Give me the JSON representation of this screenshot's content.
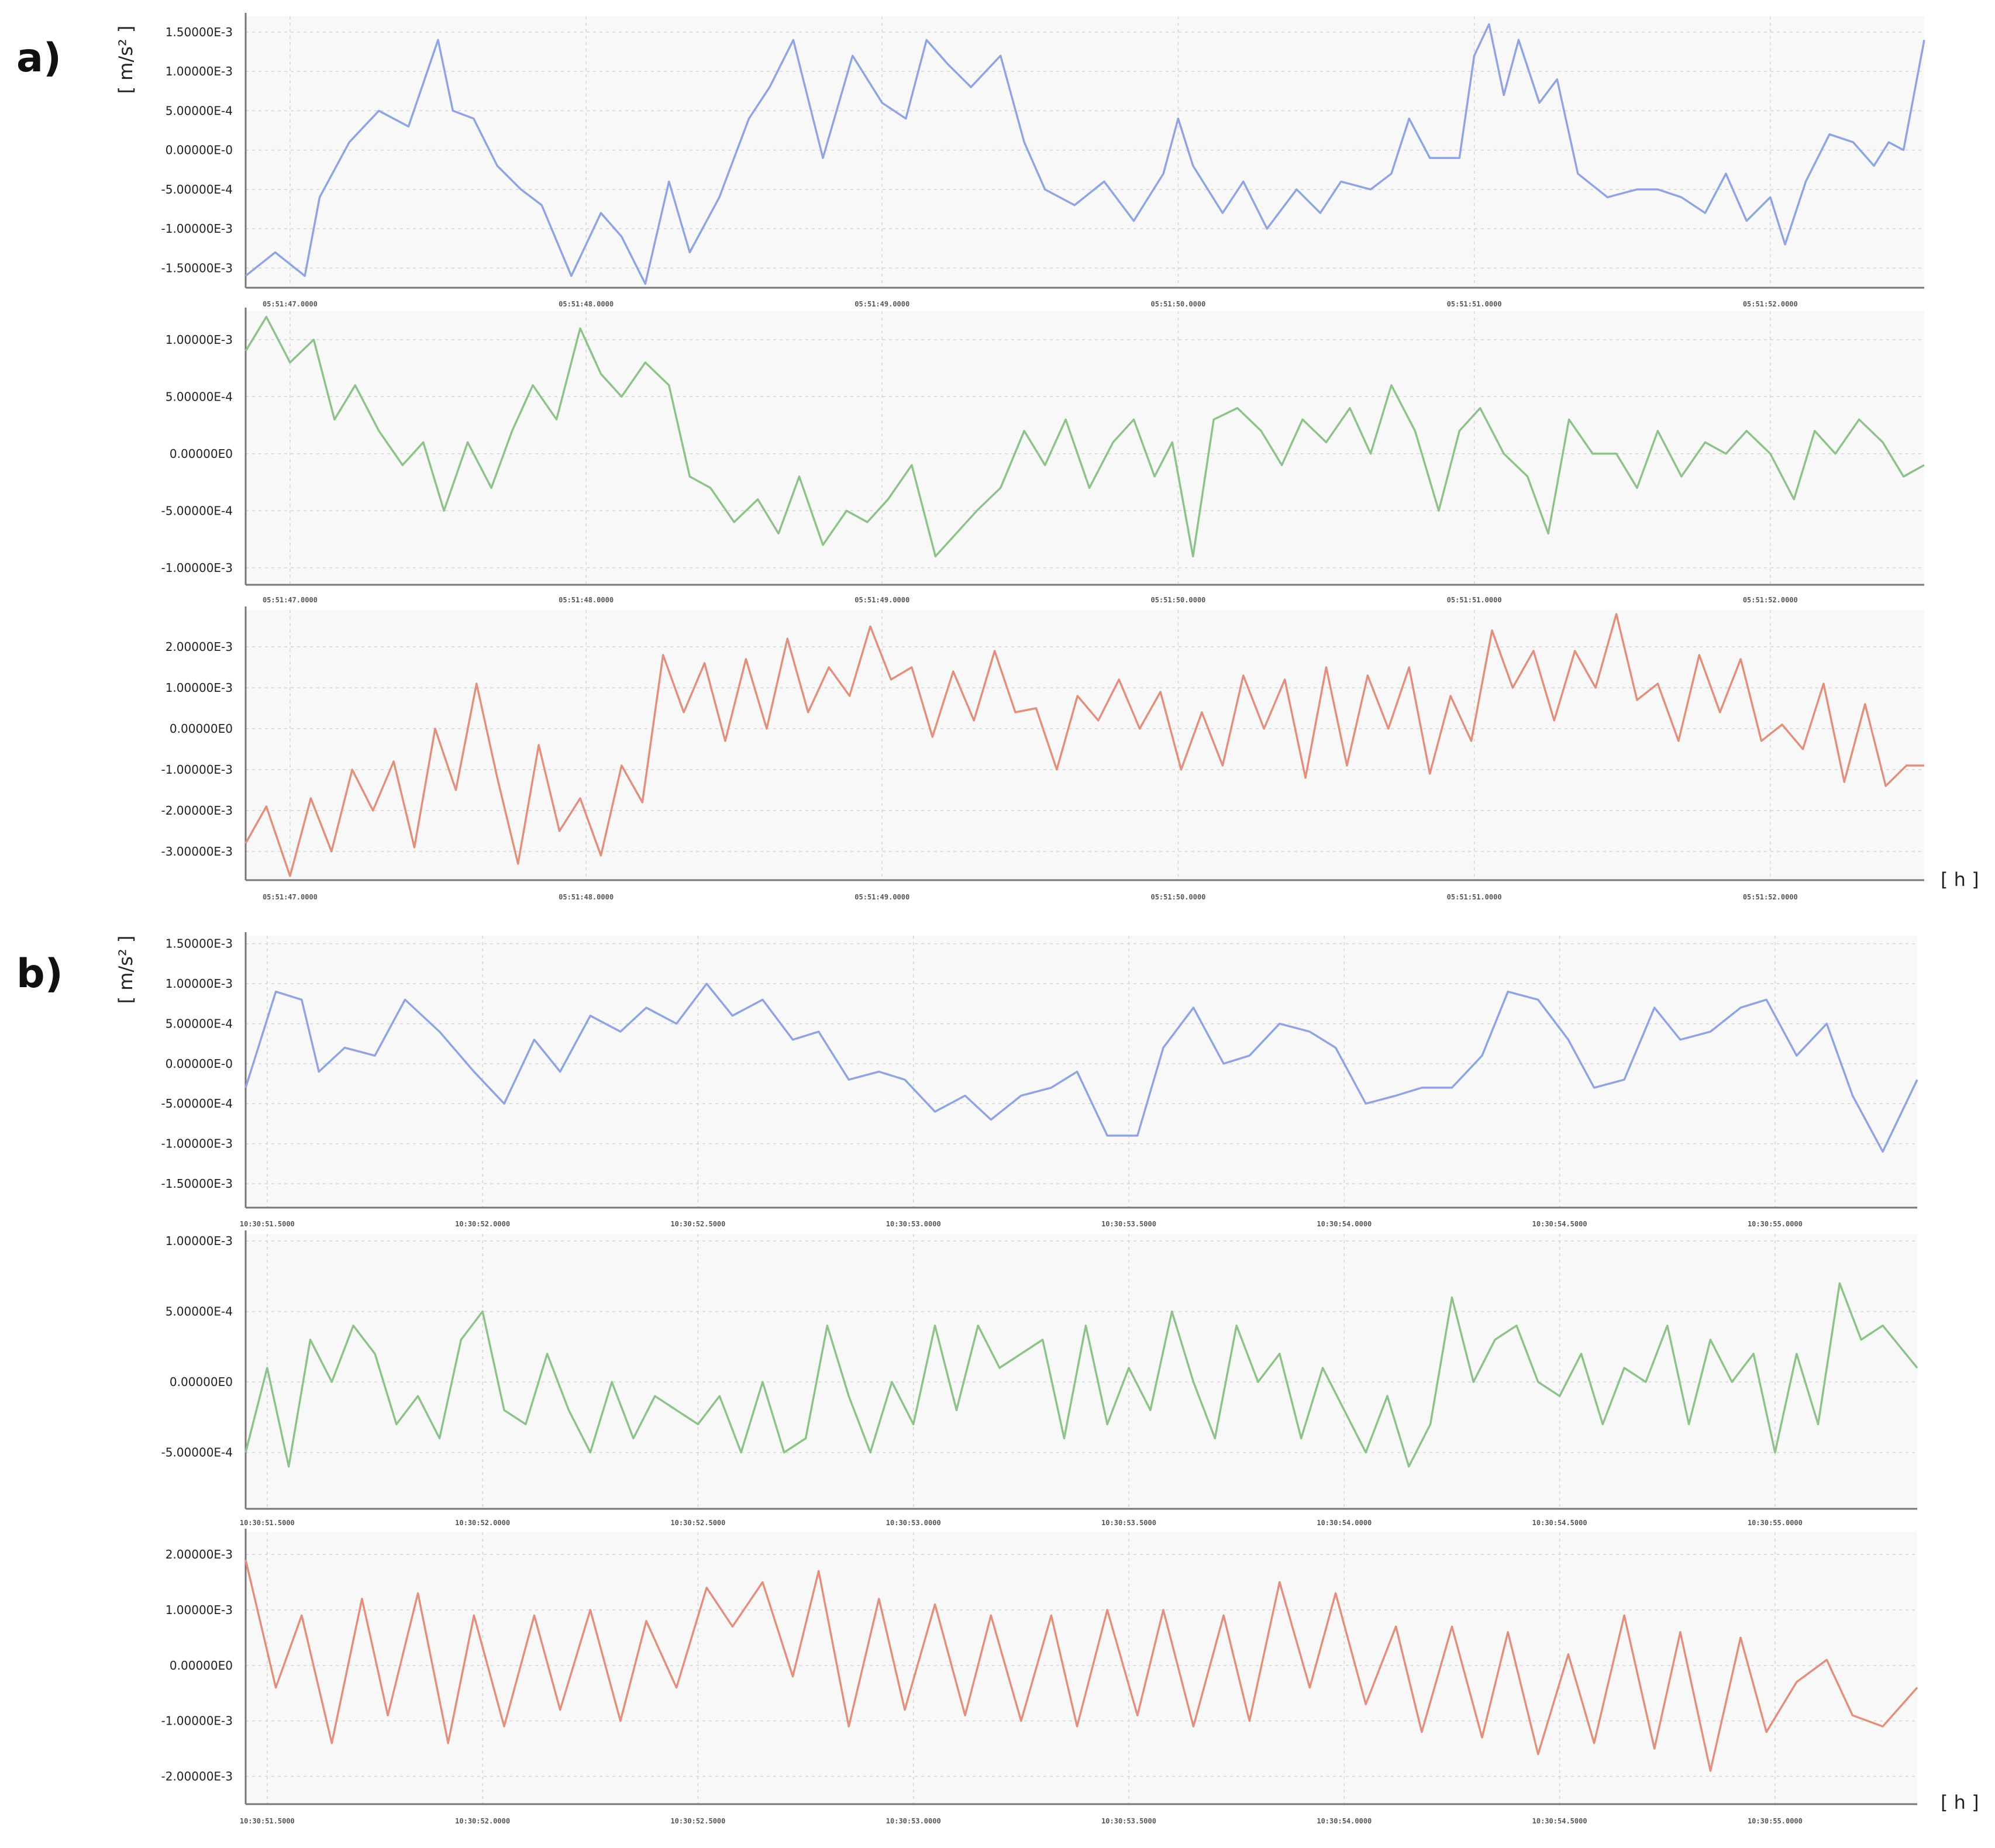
{
  "figure": {
    "panel_labels": [
      "a)",
      "b)"
    ],
    "y_unit_label": "[ m/s² ]",
    "x_unit_label": "[ h ]"
  },
  "chart_data": [
    {
      "type": "line",
      "panel": "a)",
      "series_color": "#8fa4e0",
      "y_ticks": [
        "1.50000E-3",
        "1.00000E-3",
        "5.00000E-4",
        "0.00000E-0",
        "-5.00000E-4",
        "-1.00000E-3",
        "-1.50000E-3"
      ],
      "y_tick_values": [
        0.0015,
        0.001,
        0.0005,
        0,
        -0.0005,
        -0.001,
        -0.0015
      ],
      "ylim": [
        -0.00175,
        0.0017
      ],
      "x_ticks": [
        "05:51:47.0000",
        "05:51:48.0000",
        "05:51:49.0000",
        "05:51:50.0000",
        "05:51:51.0000",
        "05:51:52.0000"
      ],
      "x_tick_values": [
        47,
        48,
        49,
        50,
        51,
        52
      ],
      "xlim": [
        46.85,
        52.52
      ],
      "x": [
        46.85,
        46.95,
        47.05,
        47.1,
        47.2,
        47.3,
        47.4,
        47.5,
        47.55,
        47.62,
        47.7,
        47.78,
        47.85,
        47.95,
        48.05,
        48.12,
        48.2,
        48.28,
        48.35,
        48.45,
        48.55,
        48.62,
        48.7,
        48.8,
        48.9,
        49.0,
        49.08,
        49.15,
        49.22,
        49.3,
        49.4,
        49.48,
        49.55,
        49.65,
        49.75,
        49.85,
        49.95,
        50.0,
        50.05,
        50.15,
        50.22,
        50.3,
        50.4,
        50.48,
        50.55,
        50.65,
        50.72,
        50.78,
        50.85,
        50.95,
        51.0,
        51.05,
        51.1,
        51.15,
        51.22,
        51.28,
        51.35,
        51.45,
        51.55,
        51.62,
        51.7,
        51.78,
        51.85,
        51.92,
        52.0,
        52.05,
        52.12,
        52.2,
        52.28,
        52.35,
        52.4,
        52.45,
        52.52
      ],
      "y": [
        -0.0016,
        -0.0013,
        -0.0016,
        -0.0006,
        0.0001,
        0.0005,
        0.0003,
        0.0014,
        0.0005,
        0.0004,
        -0.0002,
        -0.0005,
        -0.0007,
        -0.0016,
        -0.0008,
        -0.0011,
        -0.0017,
        -0.0004,
        -0.0013,
        -0.0006,
        0.0004,
        0.0008,
        0.0014,
        -0.0001,
        0.0012,
        0.0006,
        0.0004,
        0.0014,
        0.0011,
        0.0008,
        0.0012,
        0.0001,
        -0.0005,
        -0.0007,
        -0.0004,
        -0.0009,
        -0.0003,
        0.0004,
        -0.0002,
        -0.0008,
        -0.0004,
        -0.001,
        -0.0005,
        -0.0008,
        -0.0004,
        -0.0005,
        -0.0003,
        0.0004,
        -0.0001,
        -0.0001,
        0.0012,
        0.0016,
        0.0007,
        0.0014,
        0.0006,
        0.0009,
        -0.0003,
        -0.0006,
        -0.0005,
        -0.0005,
        -0.0006,
        -0.0008,
        -0.0003,
        -0.0009,
        -0.0006,
        -0.0012,
        -0.0004,
        0.0002,
        0.0001,
        -0.0002,
        0.0001,
        0.0,
        0.0014
      ]
    },
    {
      "type": "line",
      "panel": "a)",
      "series_color": "#8fc28b",
      "y_ticks": [
        "1.00000E-3",
        "5.00000E-4",
        "0.00000E0",
        "-5.00000E-4",
        "-1.00000E-3"
      ],
      "y_tick_values": [
        0.001,
        0.0005,
        0,
        -0.0005,
        -0.001
      ],
      "ylim": [
        -0.00115,
        0.00125
      ],
      "x_ticks": [
        "05:51:47.0000",
        "05:51:48.0000",
        "05:51:49.0000",
        "05:51:50.0000",
        "05:51:51.0000",
        "05:51:52.0000"
      ],
      "x_tick_values": [
        47,
        48,
        49,
        50,
        51,
        52
      ],
      "xlim": [
        46.85,
        52.52
      ],
      "x": [
        46.85,
        46.92,
        47.0,
        47.08,
        47.15,
        47.22,
        47.3,
        47.38,
        47.45,
        47.52,
        47.6,
        47.68,
        47.75,
        47.82,
        47.9,
        47.98,
        48.05,
        48.12,
        48.2,
        48.28,
        48.35,
        48.42,
        48.5,
        48.58,
        48.65,
        48.72,
        48.8,
        48.88,
        48.95,
        49.02,
        49.1,
        49.18,
        49.25,
        49.32,
        49.4,
        49.48,
        49.55,
        49.62,
        49.7,
        49.78,
        49.85,
        49.92,
        49.98,
        50.05,
        50.12,
        50.2,
        50.28,
        50.35,
        50.42,
        50.5,
        50.58,
        50.65,
        50.72,
        50.8,
        50.88,
        50.95,
        51.02,
        51.1,
        51.18,
        51.25,
        51.32,
        51.4,
        51.48,
        51.55,
        51.62,
        51.7,
        51.78,
        51.85,
        51.92,
        52.0,
        52.08,
        52.15,
        52.22,
        52.3,
        52.38,
        52.45,
        52.52
      ],
      "y": [
        0.0009,
        0.0012,
        0.0008,
        0.001,
        0.0003,
        0.0006,
        0.0002,
        -0.0001,
        0.0001,
        -0.0005,
        0.0001,
        -0.0003,
        0.0002,
        0.0006,
        0.0003,
        0.0011,
        0.0007,
        0.0005,
        0.0008,
        0.0006,
        -0.0002,
        -0.0003,
        -0.0006,
        -0.0004,
        -0.0007,
        -0.0002,
        -0.0008,
        -0.0005,
        -0.0006,
        -0.0004,
        -0.0001,
        -0.0009,
        -0.0007,
        -0.0005,
        -0.0003,
        0.0002,
        -0.0001,
        0.0003,
        -0.0003,
        0.0001,
        0.0003,
        -0.0002,
        0.0001,
        -0.0009,
        0.0003,
        0.0004,
        0.0002,
        -0.0001,
        0.0003,
        0.0001,
        0.0004,
        0.0,
        0.0006,
        0.0002,
        -0.0005,
        0.0002,
        0.0004,
        0.0,
        -0.0002,
        -0.0007,
        0.0003,
        0.0,
        0.0,
        -0.0003,
        0.0002,
        -0.0002,
        0.0001,
        0.0,
        0.0002,
        0.0,
        -0.0004,
        0.0002,
        0.0,
        0.0003,
        0.0001,
        -0.0002,
        -0.0001
      ]
    },
    {
      "type": "line",
      "panel": "a)",
      "series_color": "#e0907d",
      "y_ticks": [
        "2.00000E-3",
        "1.00000E-3",
        "0.00000E0",
        "-1.00000E-3",
        "-2.00000E-3",
        "-3.00000E-3"
      ],
      "y_tick_values": [
        0.002,
        0.001,
        0,
        -0.001,
        -0.002,
        -0.003
      ],
      "ylim": [
        -0.0037,
        0.0029
      ],
      "x_ticks": [
        "05:51:47.0000",
        "05:51:48.0000",
        "05:51:49.0000",
        "05:51:50.0000",
        "05:51:51.0000",
        "05:51:52.0000"
      ],
      "x_tick_values": [
        47,
        48,
        49,
        50,
        51,
        52
      ],
      "xlim": [
        46.85,
        52.52
      ],
      "x": [
        46.85,
        46.92,
        47.0,
        47.07,
        47.14,
        47.21,
        47.28,
        47.35,
        47.42,
        47.49,
        47.56,
        47.63,
        47.7,
        47.77,
        47.84,
        47.91,
        47.98,
        48.05,
        48.12,
        48.19,
        48.26,
        48.33,
        48.4,
        48.47,
        48.54,
        48.61,
        48.68,
        48.75,
        48.82,
        48.89,
        48.96,
        49.03,
        49.1,
        49.17,
        49.24,
        49.31,
        49.38,
        49.45,
        49.52,
        49.59,
        49.66,
        49.73,
        49.8,
        49.87,
        49.94,
        50.01,
        50.08,
        50.15,
        50.22,
        50.29,
        50.36,
        50.43,
        50.5,
        50.57,
        50.64,
        50.71,
        50.78,
        50.85,
        50.92,
        50.99,
        51.06,
        51.13,
        51.2,
        51.27,
        51.34,
        51.41,
        51.48,
        51.55,
        51.62,
        51.69,
        51.76,
        51.83,
        51.9,
        51.97,
        52.04,
        52.11,
        52.18,
        52.25,
        52.32,
        52.39,
        52.46,
        52.52
      ],
      "y": [
        -0.0028,
        -0.0019,
        -0.0036,
        -0.0017,
        -0.003,
        -0.001,
        -0.002,
        -0.0008,
        -0.0029,
        0.0,
        -0.0015,
        0.0011,
        -0.0012,
        -0.0033,
        -0.0004,
        -0.0025,
        -0.0017,
        -0.0031,
        -0.0009,
        -0.0018,
        0.0018,
        0.0004,
        0.0016,
        -0.0003,
        0.0017,
        0.0,
        0.0022,
        0.0004,
        0.0015,
        0.0008,
        0.0025,
        0.0012,
        0.0015,
        -0.0002,
        0.0014,
        0.0002,
        0.0019,
        0.0004,
        0.0005,
        -0.001,
        0.0008,
        0.0002,
        0.0012,
        0.0,
        0.0009,
        -0.001,
        0.0004,
        -0.0009,
        0.0013,
        0.0,
        0.0012,
        -0.0012,
        0.0015,
        -0.0009,
        0.0013,
        0.0,
        0.0015,
        -0.0011,
        0.0008,
        -0.0003,
        0.0024,
        0.001,
        0.0019,
        0.0002,
        0.0019,
        0.001,
        0.0028,
        0.0007,
        0.0011,
        -0.0003,
        0.0018,
        0.0004,
        0.0017,
        -0.0003,
        0.0001,
        -0.0005,
        0.0011,
        -0.0013,
        0.0006,
        -0.0014,
        -0.0009,
        -0.0009
      ]
    },
    {
      "type": "line",
      "panel": "b)",
      "series_color": "#8fa4e0",
      "y_ticks": [
        "1.50000E-3",
        "1.00000E-3",
        "5.00000E-4",
        "0.00000E-0",
        "-5.00000E-4",
        "-1.00000E-3",
        "-1.50000E-3"
      ],
      "y_tick_values": [
        0.0015,
        0.001,
        0.0005,
        0,
        -0.0005,
        -0.001,
        -0.0015
      ],
      "ylim": [
        -0.0018,
        0.0016
      ],
      "x_ticks": [
        "10:30:51.5000",
        "10:30:52.0000",
        "10:30:52.5000",
        "10:30:53.0000",
        "10:30:53.5000",
        "10:30:54.0000",
        "10:30:54.5000",
        "10:30:55.0000"
      ],
      "x_tick_values": [
        51.5,
        52.0,
        52.5,
        53.0,
        53.5,
        54.0,
        54.5,
        55.0
      ],
      "xlim": [
        51.45,
        55.33
      ],
      "x": [
        51.45,
        51.52,
        51.58,
        51.62,
        51.68,
        51.75,
        51.82,
        51.9,
        51.98,
        52.05,
        52.12,
        52.18,
        52.25,
        52.32,
        52.38,
        52.45,
        52.52,
        52.58,
        52.65,
        52.72,
        52.78,
        52.85,
        52.92,
        52.98,
        53.05,
        53.12,
        53.18,
        53.25,
        53.32,
        53.38,
        53.45,
        53.52,
        53.58,
        53.65,
        53.72,
        53.78,
        53.85,
        53.92,
        53.98,
        54.05,
        54.12,
        54.18,
        54.25,
        54.32,
        54.38,
        54.45,
        54.52,
        54.58,
        54.65,
        54.72,
        54.78,
        54.85,
        54.92,
        54.98,
        55.05,
        55.12,
        55.18,
        55.25,
        55.33
      ],
      "y": [
        -0.0003,
        0.0009,
        0.0008,
        -0.0001,
        0.0002,
        0.0001,
        0.0008,
        0.0004,
        -0.0001,
        -0.0005,
        0.0003,
        -0.0001,
        0.0006,
        0.0004,
        0.0007,
        0.0005,
        0.001,
        0.0006,
        0.0008,
        0.0003,
        0.0004,
        -0.0002,
        -0.0001,
        -0.0002,
        -0.0006,
        -0.0004,
        -0.0007,
        -0.0004,
        -0.0003,
        -0.0001,
        -0.0009,
        -0.0009,
        0.0002,
        0.0007,
        0.0,
        0.0001,
        0.0005,
        0.0004,
        0.0002,
        -0.0005,
        -0.0004,
        -0.0003,
        -0.0003,
        0.0001,
        0.0009,
        0.0008,
        0.0003,
        -0.0003,
        -0.0002,
        0.0007,
        0.0003,
        0.0004,
        0.0007,
        0.0008,
        0.0001,
        0.0005,
        -0.0004,
        -0.0011,
        -0.0002
      ]
    },
    {
      "type": "line",
      "panel": "b)",
      "series_color": "#8fc28b",
      "y_ticks": [
        "1.00000E-3",
        "5.00000E-4",
        "0.00000E0",
        "-5.00000E-4"
      ],
      "y_tick_values": [
        0.001,
        0.0005,
        0,
        -0.0005
      ],
      "ylim": [
        -0.0009,
        0.00105
      ],
      "x_ticks": [
        "10:30:51.5000",
        "10:30:52.0000",
        "10:30:52.5000",
        "10:30:53.0000",
        "10:30:53.5000",
        "10:30:54.0000",
        "10:30:54.5000",
        "10:30:55.0000"
      ],
      "x_tick_values": [
        51.5,
        52.0,
        52.5,
        53.0,
        53.5,
        54.0,
        54.5,
        55.0
      ],
      "xlim": [
        51.45,
        55.33
      ],
      "x": [
        51.45,
        51.5,
        51.55,
        51.6,
        51.65,
        51.7,
        51.75,
        51.8,
        51.85,
        51.9,
        51.95,
        52.0,
        52.05,
        52.1,
        52.15,
        52.2,
        52.25,
        52.3,
        52.35,
        52.4,
        52.45,
        52.5,
        52.55,
        52.6,
        52.65,
        52.7,
        52.75,
        52.8,
        52.85,
        52.9,
        52.95,
        53.0,
        53.05,
        53.1,
        53.15,
        53.2,
        53.25,
        53.3,
        53.35,
        53.4,
        53.45,
        53.5,
        53.55,
        53.6,
        53.65,
        53.7,
        53.75,
        53.8,
        53.85,
        53.9,
        53.95,
        54.0,
        54.05,
        54.1,
        54.15,
        54.2,
        54.25,
        54.3,
        54.35,
        54.4,
        54.45,
        54.5,
        54.55,
        54.6,
        54.65,
        54.7,
        54.75,
        54.8,
        54.85,
        54.9,
        54.95,
        55.0,
        55.05,
        55.1,
        55.15,
        55.2,
        55.25,
        55.33
      ],
      "y": [
        -0.0005,
        0.0001,
        -0.0006,
        0.0003,
        0.0,
        0.0004,
        0.0002,
        -0.0003,
        -0.0001,
        -0.0004,
        0.0003,
        0.0005,
        -0.0002,
        -0.0003,
        0.0002,
        -0.0002,
        -0.0005,
        0.0,
        -0.0004,
        -0.0001,
        -0.0002,
        -0.0003,
        -0.0001,
        -0.0005,
        0.0,
        -0.0005,
        -0.0004,
        0.0004,
        -0.0001,
        -0.0005,
        0.0,
        -0.0003,
        0.0004,
        -0.0002,
        0.0004,
        0.0001,
        0.0002,
        0.0003,
        -0.0004,
        0.0004,
        -0.0003,
        0.0001,
        -0.0002,
        0.0005,
        0.0,
        -0.0004,
        0.0004,
        0.0,
        0.0002,
        -0.0004,
        0.0001,
        -0.0002,
        -0.0005,
        -0.0001,
        -0.0006,
        -0.0003,
        0.0006,
        0.0,
        0.0003,
        0.0004,
        0.0,
        -0.0001,
        0.0002,
        -0.0003,
        0.0001,
        0.0,
        0.0004,
        -0.0003,
        0.0003,
        0.0,
        0.0002,
        -0.0005,
        0.0002,
        -0.0003,
        0.0007,
        0.0003,
        0.0004,
        0.0001
      ]
    },
    {
      "type": "line",
      "panel": "b)",
      "series_color": "#e0907d",
      "y_ticks": [
        "2.00000E-3",
        "1.00000E-3",
        "0.00000E0",
        "-1.00000E-3",
        "-2.00000E-3"
      ],
      "y_tick_values": [
        0.002,
        0.001,
        0,
        -0.001,
        -0.002
      ],
      "ylim": [
        -0.0025,
        0.0024
      ],
      "x_ticks": [
        "10:30:51.5000",
        "10:30:52.0000",
        "10:30:52.5000",
        "10:30:53.0000",
        "10:30:53.5000",
        "10:30:54.0000",
        "10:30:54.5000",
        "10:30:55.0000"
      ],
      "x_tick_values": [
        51.5,
        52.0,
        52.5,
        53.0,
        53.5,
        54.0,
        54.5,
        55.0
      ],
      "xlim": [
        51.45,
        55.33
      ],
      "x": [
        51.45,
        51.52,
        51.58,
        51.65,
        51.72,
        51.78,
        51.85,
        51.92,
        51.98,
        52.05,
        52.12,
        52.18,
        52.25,
        52.32,
        52.38,
        52.45,
        52.52,
        52.58,
        52.65,
        52.72,
        52.78,
        52.85,
        52.92,
        52.98,
        53.05,
        53.12,
        53.18,
        53.25,
        53.32,
        53.38,
        53.45,
        53.52,
        53.58,
        53.65,
        53.72,
        53.78,
        53.85,
        53.92,
        53.98,
        54.05,
        54.12,
        54.18,
        54.25,
        54.32,
        54.38,
        54.45,
        54.52,
        54.58,
        54.65,
        54.72,
        54.78,
        54.85,
        54.92,
        54.98,
        55.05,
        55.12,
        55.18,
        55.25,
        55.33
      ],
      "y": [
        0.0019,
        -0.0004,
        0.0009,
        -0.0014,
        0.0012,
        -0.0009,
        0.0013,
        -0.0014,
        0.0009,
        -0.0011,
        0.0009,
        -0.0008,
        0.001,
        -0.001,
        0.0008,
        -0.0004,
        0.0014,
        0.0007,
        0.0015,
        -0.0002,
        0.0017,
        -0.0011,
        0.0012,
        -0.0008,
        0.0011,
        -0.0009,
        0.0009,
        -0.001,
        0.0009,
        -0.0011,
        0.001,
        -0.0009,
        0.001,
        -0.0011,
        0.0009,
        -0.001,
        0.0015,
        -0.0004,
        0.0013,
        -0.0007,
        0.0007,
        -0.0012,
        0.0007,
        -0.0013,
        0.0006,
        -0.0016,
        0.0002,
        -0.0014,
        0.0009,
        -0.0015,
        0.0006,
        -0.0019,
        0.0005,
        -0.0012,
        -0.0003,
        0.0001,
        -0.0009,
        -0.0011,
        -0.0004
      ]
    }
  ]
}
